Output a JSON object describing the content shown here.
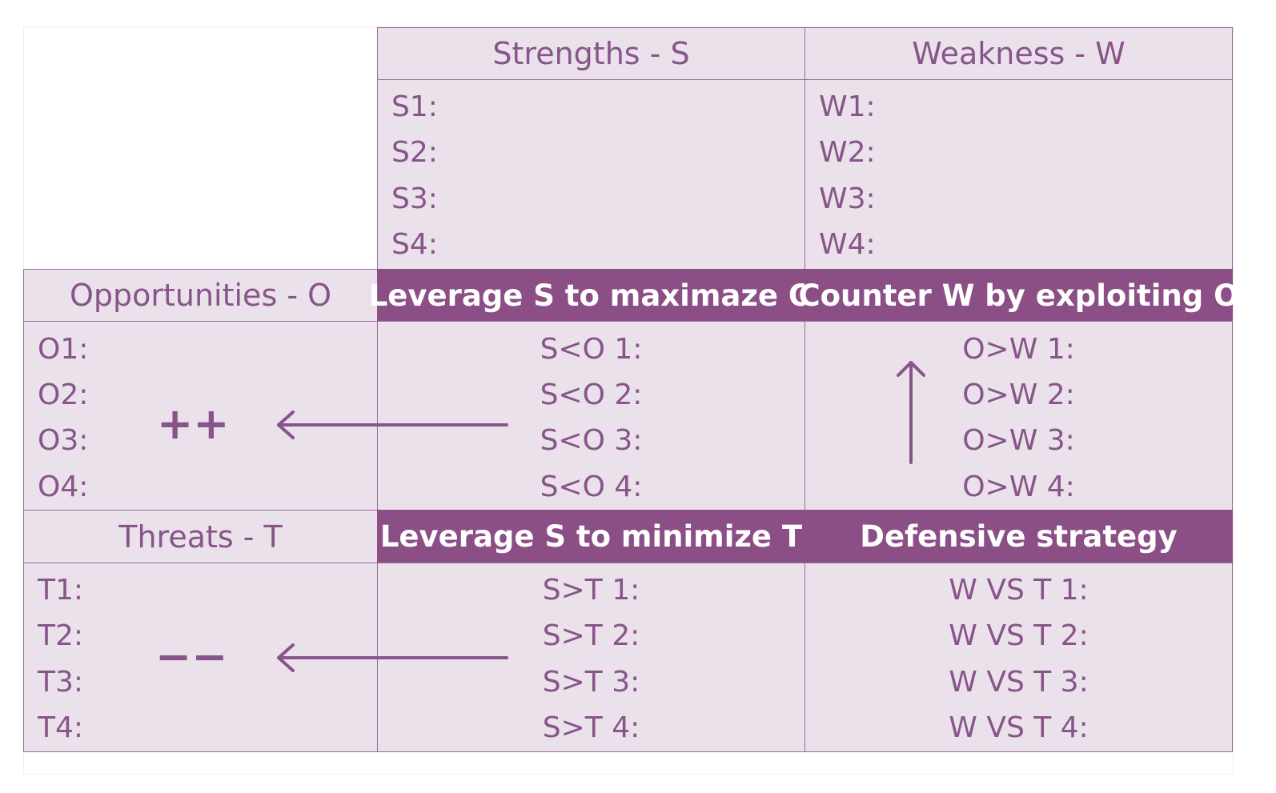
{
  "strengths": {
    "title": "Strengths - S",
    "items": [
      "S1:",
      "S2:",
      "S3:",
      "S4:"
    ]
  },
  "weakness": {
    "title": "Weakness - W",
    "items": [
      "W1:",
      "W2:",
      "W3:",
      "W4:"
    ]
  },
  "opportunities": {
    "title": "Opportunities - O",
    "items": [
      "O1:",
      "O2:",
      "O3:",
      "O4:"
    ],
    "symbol": "++"
  },
  "threats": {
    "title": "Threats - T",
    "items": [
      "T1:",
      "T2:",
      "T3:",
      "T4:"
    ],
    "symbol": "−−"
  },
  "so": {
    "title": "Leverage S to maximaze O",
    "items": [
      "S<O 1:",
      "S<O 2:",
      "S<O 3:",
      "S<O 4:"
    ]
  },
  "wo": {
    "title": "Counter W by exploiting O",
    "items": [
      "O>W 1:",
      "O>W 2:",
      "O>W 3:",
      "O>W 4:"
    ]
  },
  "st": {
    "title": "Leverage S to minimize T",
    "items": [
      "S>T 1:",
      "S>T 2:",
      "S>T 3:",
      "S>T 4:"
    ]
  },
  "wt": {
    "title": "Defensive strategy",
    "items": [
      "W VS T 1:",
      "W VS T 2:",
      "W VS T 3:",
      "W VS T 4:"
    ]
  },
  "colors": {
    "accent": "#8b4f86",
    "cell_background": "#ebe1eb",
    "text": "#87558a"
  }
}
